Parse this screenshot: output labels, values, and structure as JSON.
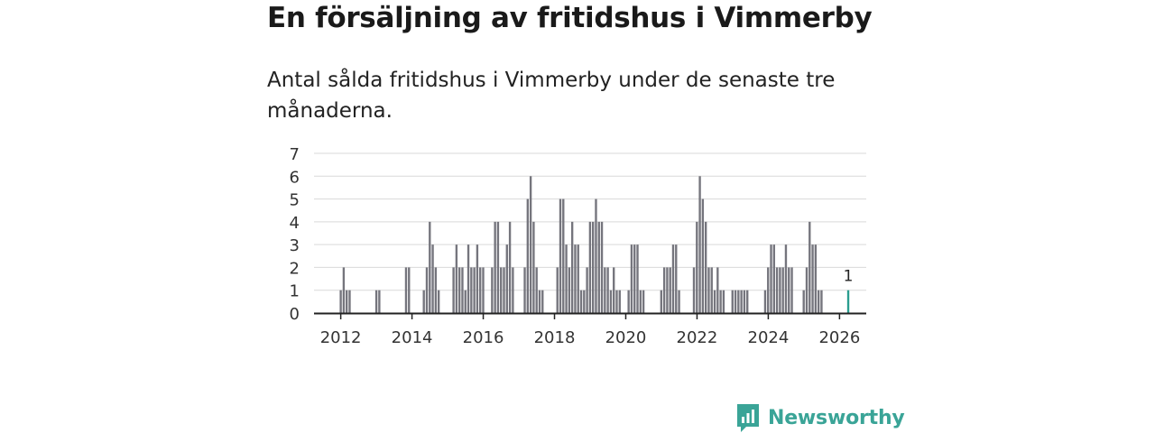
{
  "title": "En försäljning av fritidshus i Vimmerby",
  "subtitle": "Antal sålda fritidshus i Vimmerby under de senaste tre månaderna.",
  "brand": {
    "name": "Newsworthy",
    "icon": "newsworthy-logo-icon",
    "color": "#3aa497"
  },
  "colors": {
    "bar": "#75757d",
    "highlight": "#2a9d8f",
    "grid": "#d9d9d9",
    "axis": "#222222"
  },
  "chart_data": {
    "type": "bar",
    "ylim": [
      0,
      7
    ],
    "yticks": [
      0,
      1,
      2,
      3,
      4,
      5,
      6,
      7
    ],
    "xlim": [
      2011.25,
      2026.75
    ],
    "xticks": [
      "2012",
      "2014",
      "2016",
      "2018",
      "2020",
      "2022",
      "2024",
      "2026"
    ],
    "x_start": 2012.0,
    "month_step": 0.0833,
    "values": [
      1,
      2,
      1,
      1,
      0,
      0,
      0,
      0,
      0,
      0,
      0,
      0,
      1,
      1,
      0,
      0,
      0,
      0,
      0,
      0,
      0,
      0,
      2,
      2,
      0,
      0,
      0,
      0,
      1,
      2,
      4,
      3,
      2,
      1,
      0,
      0,
      0,
      0,
      2,
      3,
      2,
      2,
      1,
      3,
      2,
      2,
      3,
      2,
      2,
      0,
      0,
      2,
      4,
      4,
      2,
      2,
      3,
      4,
      2,
      0,
      0,
      0,
      2,
      5,
      6,
      4,
      2,
      1,
      1,
      0,
      0,
      0,
      0,
      2,
      5,
      5,
      3,
      2,
      4,
      3,
      3,
      1,
      1,
      2,
      4,
      4,
      5,
      4,
      4,
      2,
      2,
      1,
      2,
      1,
      1,
      0,
      0,
      1,
      3,
      3,
      3,
      1,
      1,
      0,
      0,
      0,
      0,
      0,
      1,
      2,
      2,
      2,
      3,
      3,
      1,
      0,
      0,
      0,
      0,
      2,
      4,
      6,
      5,
      4,
      2,
      2,
      1,
      2,
      1,
      1,
      0,
      0,
      1,
      1,
      1,
      1,
      1,
      1,
      0,
      0,
      0,
      0,
      0,
      1,
      2,
      3,
      3,
      2,
      2,
      2,
      3,
      2,
      2,
      0,
      0,
      0,
      1,
      2,
      4,
      3,
      3,
      1,
      1,
      0,
      0,
      0,
      0,
      0,
      0,
      0,
      0,
      1
    ],
    "highlight": {
      "value": 1,
      "label": "1"
    }
  }
}
